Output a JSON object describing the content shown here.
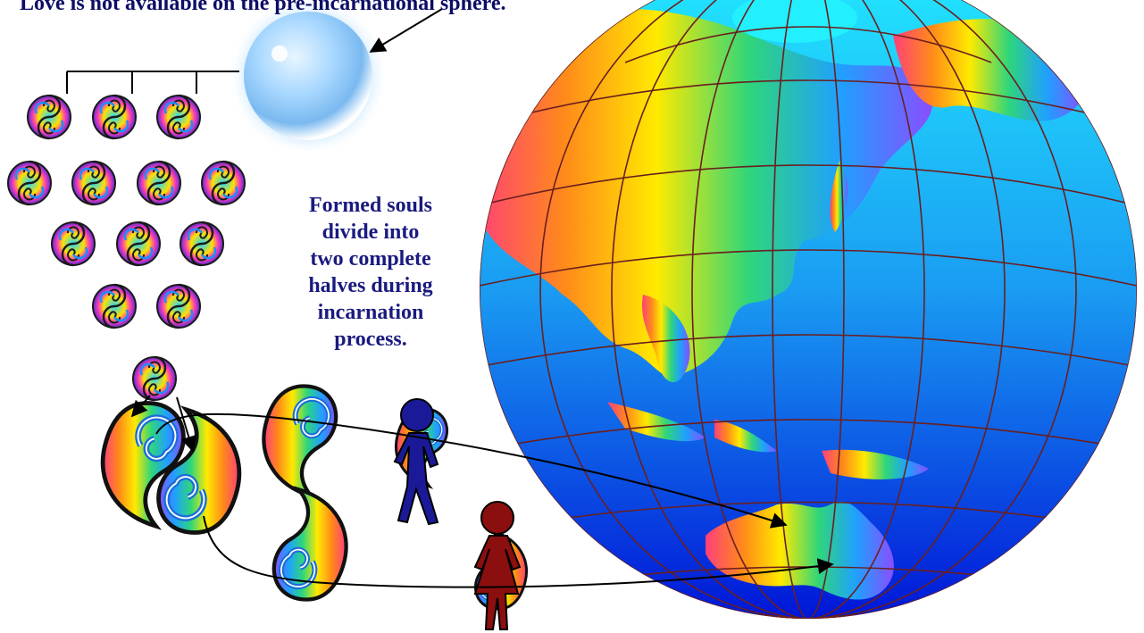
{
  "header": {
    "title": "Love is not available on the pre-incarnational sphere."
  },
  "caption": {
    "lines": [
      "Formed souls",
      "divide into",
      "two complete",
      "halves during",
      "incarnation",
      "process."
    ]
  },
  "colors": {
    "text_primary": "#0d0d66",
    "caption_text": "#1a1a80",
    "ocean_light": "#22e0ff",
    "ocean_dark": "#0016d8",
    "grid_lines": "#6a1f1f",
    "figure_male": "#1a1a99",
    "figure_female": "#8b0f0f",
    "rainbow": [
      "#ff3f7a",
      "#ff8a1a",
      "#ffea00",
      "#2fd67a",
      "#1fa0ff",
      "#8a4dff"
    ]
  },
  "icons": {
    "sphere": "pre-incarnational-sphere",
    "soul": "yin-yang-soul-icon",
    "half_soul": "soul-half-icon",
    "globe": "earth-globe",
    "male": "male-figure-icon",
    "female": "female-figure-icon"
  }
}
